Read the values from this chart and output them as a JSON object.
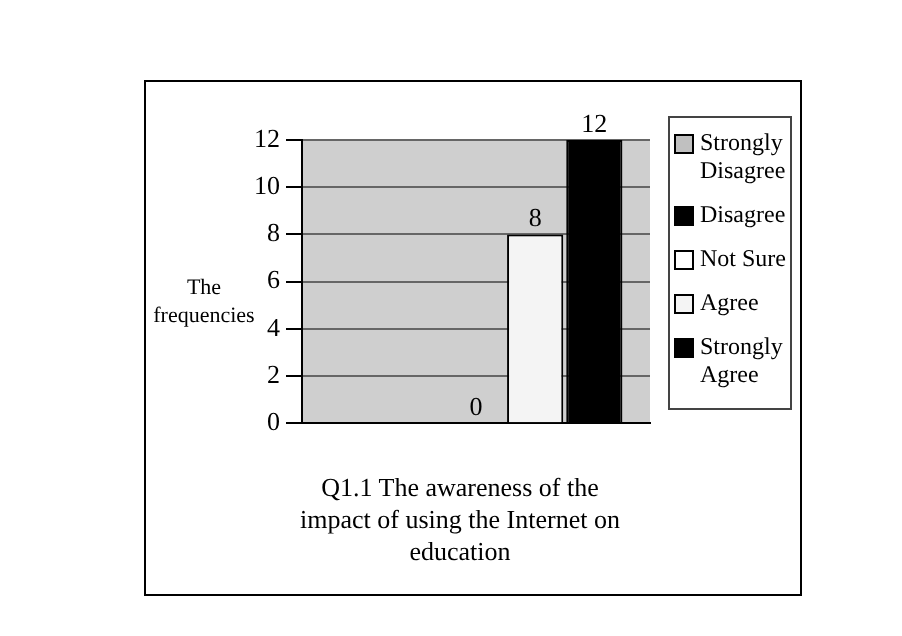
{
  "chart_data": {
    "type": "bar",
    "xlabel": "Q1.1 The awareness of the impact of using the Internet on education",
    "ylabel": "The frequencies",
    "categories": [
      null
    ],
    "series": [
      {
        "name": "Strongly Disagree",
        "color": "#c0c0c0",
        "values": [
          0
        ],
        "value_labels": [
          null
        ]
      },
      {
        "name": "Disagree",
        "color": "#000000",
        "values": [
          0
        ],
        "value_labels": [
          null
        ]
      },
      {
        "name": "Not Sure",
        "color": "#ffffff",
        "values": [
          0
        ],
        "value_labels": [
          "0"
        ]
      },
      {
        "name": "Agree",
        "color": "#f4f4f4",
        "values": [
          8
        ],
        "value_labels": [
          "8"
        ]
      },
      {
        "name": "Strongly Agree",
        "color": "#000000",
        "values": [
          12
        ],
        "value_labels": [
          "12"
        ]
      }
    ],
    "ylim": [
      0,
      12
    ],
    "yticks": [
      0,
      2,
      4,
      6,
      8,
      10,
      12
    ],
    "grid": "y",
    "legend": "right"
  }
}
